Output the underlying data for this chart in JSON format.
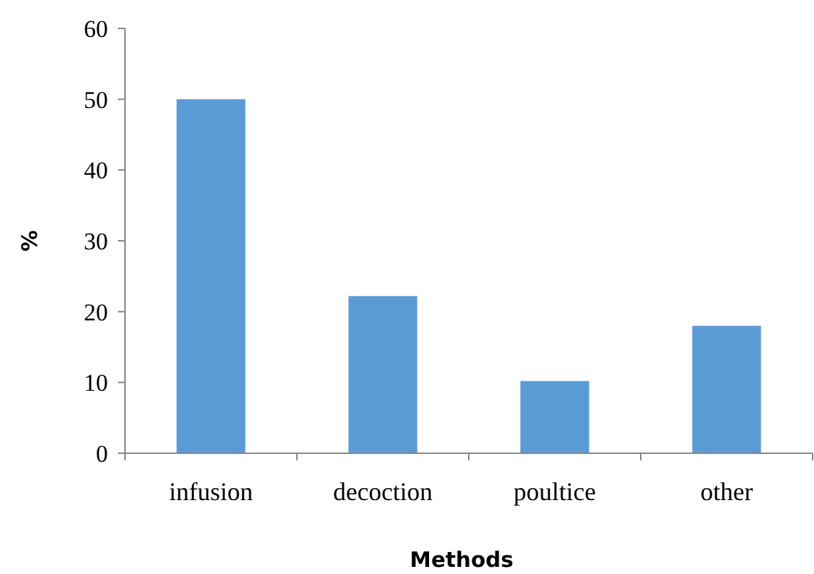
{
  "chart_data": {
    "type": "bar",
    "xlabel": "Methods",
    "ylabel": "%",
    "categories": [
      "infusion",
      "decoction",
      "poultice",
      "other"
    ],
    "values": [
      50,
      22.2,
      10.2,
      18
    ],
    "color": "#5b9bd5",
    "ylim": [
      0,
      60
    ],
    "yticks": [
      0,
      10,
      20,
      30,
      40,
      50,
      60
    ],
    "grid": false
  }
}
